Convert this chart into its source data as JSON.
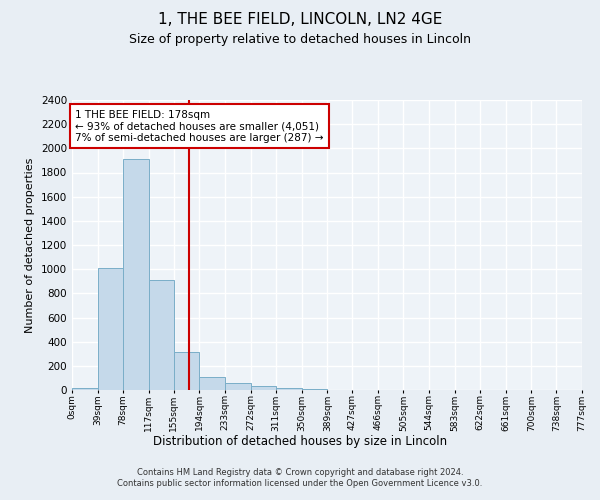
{
  "title": "1, THE BEE FIELD, LINCOLN, LN2 4GE",
  "subtitle": "Size of property relative to detached houses in Lincoln",
  "xlabel": "Distribution of detached houses by size in Lincoln",
  "ylabel": "Number of detached properties",
  "bar_color": "#c5d9ea",
  "bar_edge_color": "#7aaec8",
  "bin_edges": [
    0,
    39,
    78,
    117,
    155,
    194,
    233,
    272,
    311,
    350,
    389,
    427,
    466,
    505,
    544,
    583,
    622,
    661,
    700,
    738,
    777
  ],
  "bar_heights": [
    20,
    1010,
    1910,
    910,
    315,
    110,
    55,
    35,
    20,
    10,
    0,
    0,
    0,
    0,
    0,
    0,
    0,
    0,
    0,
    0
  ],
  "tick_labels": [
    "0sqm",
    "39sqm",
    "78sqm",
    "117sqm",
    "155sqm",
    "194sqm",
    "233sqm",
    "272sqm",
    "311sqm",
    "350sqm",
    "389sqm",
    "427sqm",
    "466sqm",
    "505sqm",
    "544sqm",
    "583sqm",
    "622sqm",
    "661sqm",
    "700sqm",
    "738sqm",
    "777sqm"
  ],
  "vline_x": 178,
  "vline_color": "#cc0000",
  "annotation_text": "1 THE BEE FIELD: 178sqm\n← 93% of detached houses are smaller (4,051)\n7% of semi-detached houses are larger (287) →",
  "annotation_box_color": "#cc0000",
  "ylim": [
    0,
    2400
  ],
  "yticks": [
    0,
    200,
    400,
    600,
    800,
    1000,
    1200,
    1400,
    1600,
    1800,
    2000,
    2200,
    2400
  ],
  "footer_line1": "Contains HM Land Registry data © Crown copyright and database right 2024.",
  "footer_line2": "Contains public sector information licensed under the Open Government Licence v3.0.",
  "bg_color": "#e8eef4",
  "plot_bg_color": "#eef3f8",
  "grid_color": "#ffffff"
}
